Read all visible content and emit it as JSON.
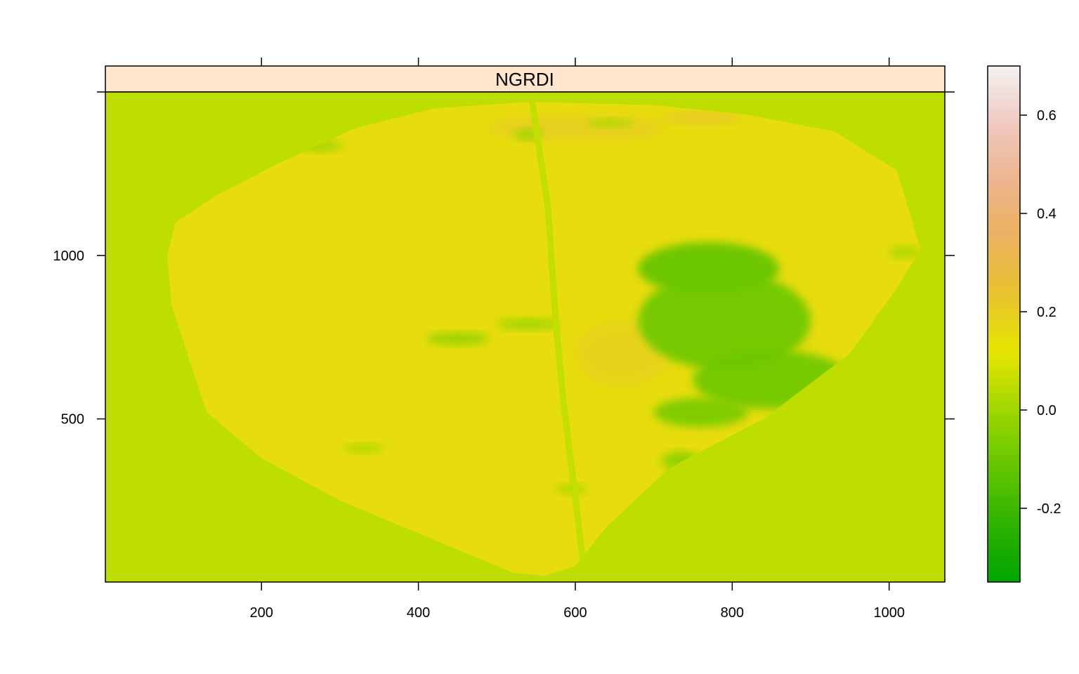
{
  "chart_data": {
    "type": "heatmap",
    "title": "NGRDI",
    "xlabel": "",
    "ylabel": "",
    "xlim": [
      1,
      1071
    ],
    "ylim": [
      1,
      1500
    ],
    "x_ticks": [
      200,
      400,
      600,
      800,
      1000
    ],
    "y_ticks": [
      500,
      1000
    ],
    "colorbar": {
      "range": [
        -0.35,
        0.7
      ],
      "ticks": [
        -0.2,
        0.0,
        0.2,
        0.4,
        0.6
      ],
      "tick_labels": [
        "-0.2",
        "0.0",
        "0.2",
        "0.4",
        "0.6"
      ],
      "palette": [
        "#00A600",
        "#2DB200",
        "#63C600",
        "#A0D600",
        "#E6E600",
        "#E8C32E",
        "#EBB25E",
        "#EDB48E",
        "#F0C9C0",
        "#F2F2F2"
      ]
    },
    "background_value": 0.05,
    "leaf_value": 0.15,
    "leaf_outline": [
      [
        560,
        20
      ],
      [
        520,
        30
      ],
      [
        480,
        70
      ],
      [
        400,
        150
      ],
      [
        300,
        250
      ],
      [
        200,
        380
      ],
      [
        130,
        520
      ],
      [
        85,
        850
      ],
      [
        80,
        1000
      ],
      [
        90,
        1100
      ],
      [
        140,
        1180
      ],
      [
        220,
        1280
      ],
      [
        320,
        1390
      ],
      [
        420,
        1450
      ],
      [
        540,
        1470
      ],
      [
        700,
        1460
      ],
      [
        820,
        1430
      ],
      [
        930,
        1380
      ],
      [
        1010,
        1260
      ],
      [
        1040,
        1020
      ],
      [
        1010,
        900
      ],
      [
        950,
        700
      ],
      [
        840,
        500
      ],
      [
        720,
        350
      ],
      [
        640,
        170
      ],
      [
        600,
        50
      ],
      [
        560,
        20
      ]
    ],
    "midrib": [
      [
        545,
        1470
      ],
      [
        565,
        1150
      ],
      [
        575,
        800
      ],
      [
        585,
        550
      ],
      [
        600,
        260
      ],
      [
        610,
        60
      ]
    ],
    "low_patches": [
      {
        "x": 770,
        "y": 960,
        "rx": 90,
        "ry": 80,
        "value": -0.12
      },
      {
        "x": 790,
        "y": 800,
        "rx": 110,
        "ry": 150,
        "value": -0.1
      },
      {
        "x": 850,
        "y": 620,
        "rx": 100,
        "ry": 90,
        "value": -0.1
      },
      {
        "x": 760,
        "y": 520,
        "rx": 60,
        "ry": 45,
        "value": -0.08
      },
      {
        "x": 735,
        "y": 370,
        "rx": 25,
        "ry": 30,
        "value": -0.04
      },
      {
        "x": 450,
        "y": 745,
        "rx": 40,
        "ry": 20,
        "value": -0.02
      },
      {
        "x": 540,
        "y": 790,
        "rx": 40,
        "ry": 18,
        "value": 0.0
      },
      {
        "x": 275,
        "y": 1335,
        "rx": 28,
        "ry": 18,
        "value": 0.0
      },
      {
        "x": 540,
        "y": 1370,
        "rx": 18,
        "ry": 18,
        "value": 0.0
      },
      {
        "x": 645,
        "y": 1405,
        "rx": 30,
        "ry": 14,
        "value": 0.02
      },
      {
        "x": 595,
        "y": 285,
        "rx": 20,
        "ry": 16,
        "value": 0.02
      },
      {
        "x": 330,
        "y": 410,
        "rx": 25,
        "ry": 14,
        "value": 0.02
      },
      {
        "x": 1020,
        "y": 1010,
        "rx": 20,
        "ry": 20,
        "value": 0.02
      }
    ],
    "high_patches": [
      {
        "x": 600,
        "y": 1390,
        "rx": 110,
        "ry": 40,
        "value": 0.22
      },
      {
        "x": 760,
        "y": 1420,
        "rx": 50,
        "ry": 18,
        "value": 0.26
      },
      {
        "x": 660,
        "y": 700,
        "rx": 60,
        "ry": 100,
        "value": 0.2
      }
    ]
  }
}
